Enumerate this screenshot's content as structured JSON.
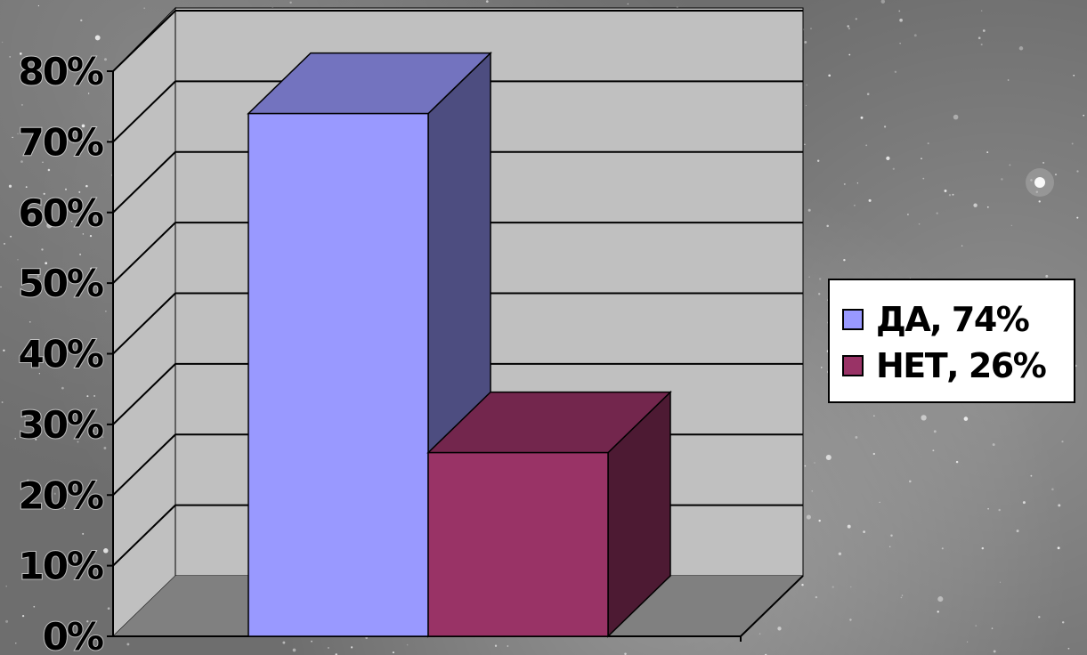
{
  "chart_data": {
    "type": "bar",
    "title": "",
    "xlabel": "",
    "ylabel": "",
    "ylim": [
      0,
      80
    ],
    "yticks": [
      "0%",
      "10%",
      "20%",
      "30%",
      "40%",
      "50%",
      "60%",
      "70%",
      "80%"
    ],
    "grid": true,
    "three_d": true,
    "legend_position": "right",
    "series": [
      {
        "name": "ДА, 74%",
        "value": 74,
        "color": "#9999ff"
      },
      {
        "name": "НЕТ, 26%",
        "value": 26,
        "color": "#993366"
      }
    ]
  },
  "colors": {
    "wall": "#c0c0c0",
    "floor": "#808080",
    "gridline": "#000000"
  }
}
